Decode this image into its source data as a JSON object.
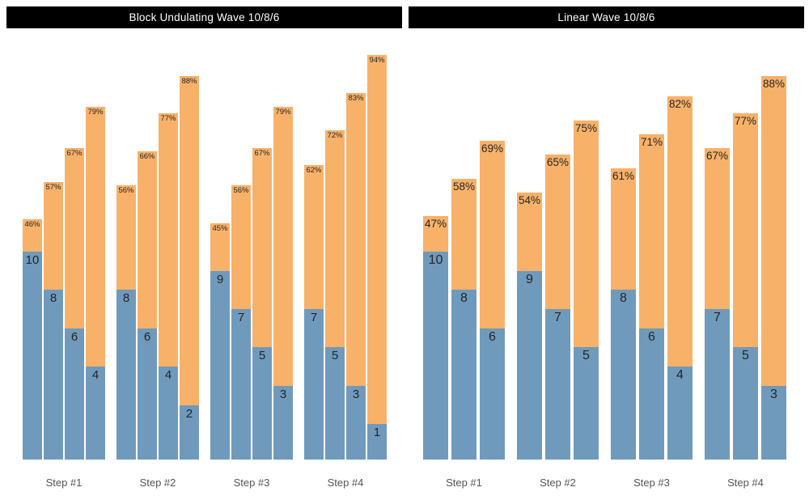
{
  "ui": {
    "colors": {
      "reps_segment": "#6F9ABC",
      "intensity_segment": "#F8B169",
      "title_bg": "#000000",
      "title_fg": "#FFFFFF",
      "bar_label": "#262626",
      "axis_label": "#545454",
      "background": "#FFFFFF"
    }
  },
  "chart_data": [
    {
      "type": "bar",
      "subtype": "stacked-grouped",
      "title": "Block Undulating Wave 10/8/6",
      "categories": [
        "Step #1",
        "Step #2",
        "Step #3",
        "Step #4"
      ],
      "legend": "none",
      "grid": false,
      "series_meaning": {
        "bottom_blue": "reps per set (count label inside blue segment)",
        "top_orange": "intensity percent of 1RM (percent label at top of orange segment)"
      },
      "groups": [
        {
          "category": "Step #1",
          "bars": [
            {
              "reps": 10,
              "pct": 46,
              "pct_label": "46%"
            },
            {
              "reps": 8,
              "pct": 57,
              "pct_label": "57%"
            },
            {
              "reps": 6,
              "pct": 67,
              "pct_label": "67%"
            },
            {
              "reps": 4,
              "pct": 79,
              "pct_label": "79%"
            }
          ]
        },
        {
          "category": "Step #2",
          "bars": [
            {
              "reps": 8,
              "pct": 56,
              "pct_label": "56%"
            },
            {
              "reps": 6,
              "pct": 66,
              "pct_label": "66%"
            },
            {
              "reps": 4,
              "pct": 77,
              "pct_label": "77%"
            },
            {
              "reps": 2,
              "pct": 88,
              "pct_label": "88%"
            }
          ]
        },
        {
          "category": "Step #3",
          "bars": [
            {
              "reps": 9,
              "pct": 45,
              "pct_label": "45%"
            },
            {
              "reps": 7,
              "pct": 56,
              "pct_label": "56%"
            },
            {
              "reps": 5,
              "pct": 67,
              "pct_label": "67%"
            },
            {
              "reps": 3,
              "pct": 79,
              "pct_label": "79%"
            }
          ]
        },
        {
          "category": "Step #4",
          "bars": [
            {
              "reps": 7,
              "pct": 62,
              "pct_label": "62%"
            },
            {
              "reps": 5,
              "pct": 72,
              "pct_label": "72%"
            },
            {
              "reps": 3,
              "pct": 83,
              "pct_label": "83%"
            },
            {
              "reps": 1,
              "pct": 94,
              "pct_label": "94%"
            }
          ]
        }
      ]
    },
    {
      "type": "bar",
      "subtype": "stacked-grouped",
      "title": "Linear Wave 10/8/6",
      "categories": [
        "Step #1",
        "Step #2",
        "Step #3",
        "Step #4"
      ],
      "legend": "none",
      "grid": false,
      "series_meaning": {
        "bottom_blue": "reps per set (count label inside blue segment)",
        "top_orange": "intensity percent of 1RM (percent label at top of orange segment)"
      },
      "groups": [
        {
          "category": "Step #1",
          "bars": [
            {
              "reps": 10,
              "pct": 47,
              "pct_label": "47%"
            },
            {
              "reps": 8,
              "pct": 58,
              "pct_label": "58%"
            },
            {
              "reps": 6,
              "pct": 69,
              "pct_label": "69%"
            }
          ]
        },
        {
          "category": "Step #2",
          "bars": [
            {
              "reps": 9,
              "pct": 54,
              "pct_label": "54%"
            },
            {
              "reps": 7,
              "pct": 65,
              "pct_label": "65%"
            },
            {
              "reps": 5,
              "pct": 75,
              "pct_label": "75%"
            }
          ]
        },
        {
          "category": "Step #3",
          "bars": [
            {
              "reps": 8,
              "pct": 61,
              "pct_label": "61%"
            },
            {
              "reps": 6,
              "pct": 71,
              "pct_label": "71%"
            },
            {
              "reps": 4,
              "pct": 82,
              "pct_label": "82%"
            }
          ]
        },
        {
          "category": "Step #4",
          "bars": [
            {
              "reps": 7,
              "pct": 67,
              "pct_label": "67%"
            },
            {
              "reps": 5,
              "pct": 77,
              "pct_label": "77%"
            },
            {
              "reps": 3,
              "pct": 88,
              "pct_label": "88%"
            }
          ]
        }
      ]
    }
  ]
}
